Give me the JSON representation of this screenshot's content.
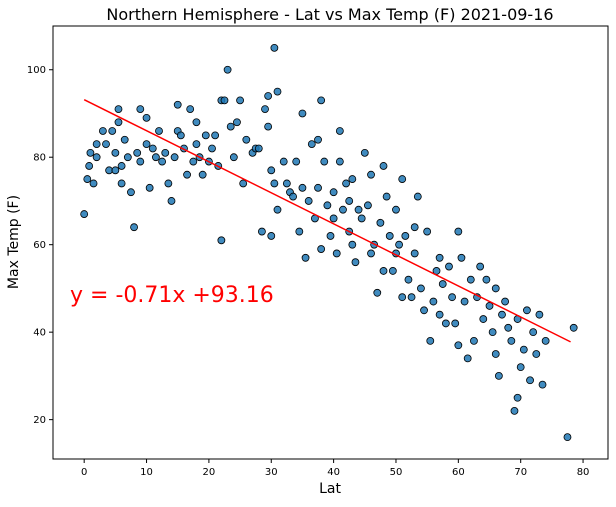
{
  "chart_data": {
    "type": "scatter",
    "title": "Northern Hemisphere - Lat vs Max Temp (F) 2021-09-16",
    "xlabel": "Lat",
    "ylabel": "Max Temp (F)",
    "xlim": [
      -5,
      84
    ],
    "ylim": [
      11,
      110
    ],
    "xticks": [
      0,
      10,
      20,
      30,
      40,
      50,
      60,
      70,
      80
    ],
    "yticks": [
      20,
      40,
      60,
      80,
      100
    ],
    "grid": false,
    "point_color": "#1f77b4",
    "point_edge_color": "#000000",
    "regression": {
      "equation": "y = -0.71x +93.16",
      "slope": -0.71,
      "intercept": 93.16,
      "x_range": [
        0,
        78
      ],
      "color": "#ff0000"
    },
    "points": [
      [
        0,
        67
      ],
      [
        0.5,
        75
      ],
      [
        0.8,
        78
      ],
      [
        1,
        81
      ],
      [
        1.5,
        74
      ],
      [
        2,
        83
      ],
      [
        2,
        80
      ],
      [
        3,
        86
      ],
      [
        3.5,
        83
      ],
      [
        4,
        77
      ],
      [
        4.5,
        86
      ],
      [
        5,
        81
      ],
      [
        5,
        77
      ],
      [
        5.5,
        91
      ],
      [
        5.5,
        88
      ],
      [
        6,
        74
      ],
      [
        6,
        78
      ],
      [
        6.5,
        84
      ],
      [
        7,
        80
      ],
      [
        7.5,
        72
      ],
      [
        8,
        64
      ],
      [
        8.5,
        81
      ],
      [
        9,
        79
      ],
      [
        9,
        91
      ],
      [
        10,
        83
      ],
      [
        10,
        89
      ],
      [
        10.5,
        73
      ],
      [
        11,
        82
      ],
      [
        11.5,
        80
      ],
      [
        12,
        86
      ],
      [
        12.5,
        79
      ],
      [
        13,
        81
      ],
      [
        13.5,
        74
      ],
      [
        14,
        70
      ],
      [
        14.5,
        80
      ],
      [
        15,
        92
      ],
      [
        15,
        86
      ],
      [
        15.5,
        85
      ],
      [
        16,
        82
      ],
      [
        16.5,
        76
      ],
      [
        17,
        91
      ],
      [
        17.5,
        79
      ],
      [
        18,
        83
      ],
      [
        18,
        88
      ],
      [
        18.5,
        80
      ],
      [
        19,
        76
      ],
      [
        19.5,
        85
      ],
      [
        20,
        79
      ],
      [
        20.5,
        82
      ],
      [
        21,
        85
      ],
      [
        21.5,
        78
      ],
      [
        22,
        61
      ],
      [
        22,
        93
      ],
      [
        22.5,
        93
      ],
      [
        23,
        100
      ],
      [
        23.5,
        87
      ],
      [
        24,
        80
      ],
      [
        24.5,
        88
      ],
      [
        25,
        93
      ],
      [
        25.5,
        74
      ],
      [
        26,
        84
      ],
      [
        27,
        81
      ],
      [
        27.5,
        82
      ],
      [
        28,
        82
      ],
      [
        28.5,
        63
      ],
      [
        29,
        91
      ],
      [
        29.5,
        94
      ],
      [
        29.5,
        87
      ],
      [
        30,
        77
      ],
      [
        30,
        62
      ],
      [
        30.5,
        74
      ],
      [
        31,
        95
      ],
      [
        31,
        68
      ],
      [
        30.5,
        105
      ],
      [
        32,
        79
      ],
      [
        32.5,
        74
      ],
      [
        33,
        72
      ],
      [
        33.5,
        71
      ],
      [
        34,
        79
      ],
      [
        34.5,
        63
      ],
      [
        35,
        90
      ],
      [
        35,
        73
      ],
      [
        35.5,
        57
      ],
      [
        36,
        70
      ],
      [
        36.5,
        83
      ],
      [
        37,
        66
      ],
      [
        37.5,
        73
      ],
      [
        37.5,
        84
      ],
      [
        38,
        59
      ],
      [
        38,
        93
      ],
      [
        38.5,
        79
      ],
      [
        39,
        69
      ],
      [
        39.5,
        62
      ],
      [
        40,
        66
      ],
      [
        40,
        72
      ],
      [
        40.5,
        58
      ],
      [
        41,
        86
      ],
      [
        41,
        79
      ],
      [
        41.5,
        68
      ],
      [
        42,
        74
      ],
      [
        42.5,
        70
      ],
      [
        42.5,
        63
      ],
      [
        43,
        60
      ],
      [
        43,
        75
      ],
      [
        43.5,
        56
      ],
      [
        44,
        68
      ],
      [
        44.5,
        66
      ],
      [
        45,
        81
      ],
      [
        45.5,
        69
      ],
      [
        46,
        76
      ],
      [
        46,
        58
      ],
      [
        46.5,
        60
      ],
      [
        47,
        49
      ],
      [
        47.5,
        65
      ],
      [
        48,
        54
      ],
      [
        48,
        78
      ],
      [
        48.5,
        71
      ],
      [
        49,
        62
      ],
      [
        49.5,
        54
      ],
      [
        50,
        58
      ],
      [
        50,
        68
      ],
      [
        50.5,
        60
      ],
      [
        51,
        75
      ],
      [
        51,
        48
      ],
      [
        51.5,
        62
      ],
      [
        52,
        52
      ],
      [
        52.5,
        48
      ],
      [
        53,
        58
      ],
      [
        53,
        64
      ],
      [
        53.5,
        71
      ],
      [
        54,
        50
      ],
      [
        54.5,
        45
      ],
      [
        55,
        63
      ],
      [
        55.5,
        38
      ],
      [
        56,
        47
      ],
      [
        56.5,
        54
      ],
      [
        57,
        57
      ],
      [
        57,
        44
      ],
      [
        57.5,
        51
      ],
      [
        58,
        42
      ],
      [
        58.5,
        55
      ],
      [
        59,
        48
      ],
      [
        59.5,
        42
      ],
      [
        60,
        37
      ],
      [
        60,
        63
      ],
      [
        60.5,
        57
      ],
      [
        61,
        47
      ],
      [
        61.5,
        34
      ],
      [
        62,
        52
      ],
      [
        62.5,
        38
      ],
      [
        63,
        48
      ],
      [
        63.5,
        55
      ],
      [
        64,
        43
      ],
      [
        64.5,
        52
      ],
      [
        65,
        46
      ],
      [
        65.5,
        40
      ],
      [
        66,
        50
      ],
      [
        66,
        35
      ],
      [
        66.5,
        30
      ],
      [
        67,
        44
      ],
      [
        67.5,
        47
      ],
      [
        68,
        41
      ],
      [
        68.5,
        38
      ],
      [
        69,
        22
      ],
      [
        69.5,
        25
      ],
      [
        69.5,
        43
      ],
      [
        70,
        32
      ],
      [
        70.5,
        36
      ],
      [
        71,
        45
      ],
      [
        71.5,
        29
      ],
      [
        72,
        40
      ],
      [
        72.5,
        35
      ],
      [
        73,
        44
      ],
      [
        73.5,
        28
      ],
      [
        74,
        38
      ],
      [
        77.5,
        16
      ],
      [
        78.5,
        41
      ]
    ]
  }
}
